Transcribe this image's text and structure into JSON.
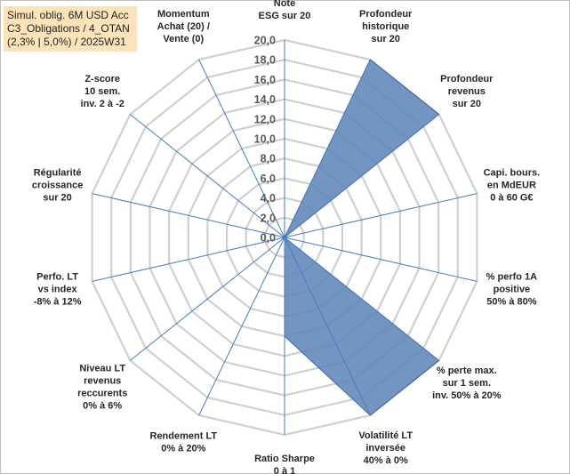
{
  "header": {
    "title_lines": [
      "Simul. oblig. 6M USD Acc",
      "C3_Obligations / 4_OTAN",
      "(2,3% | 5,0%) / 2025W31"
    ]
  },
  "chart_data": {
    "type": "radar",
    "rmin": 0,
    "rmax": 20,
    "tick_labels": [
      "0,0",
      "2,0",
      "4,0",
      "6,0",
      "8,0",
      "10,0",
      "12,0",
      "14,0",
      "16,0",
      "18,0",
      "20,0"
    ],
    "grid": true,
    "categories": [
      "Note ESG sur 20",
      "Profondeur historique sur 20",
      "Profondeur revenus sur 20",
      "Capi. bours. en MdEUR 0 à 60 G€",
      "% perfo 1A positive 50% à 80%",
      "% perte max. sur 1 sem. inv. 50% à 20%",
      "Volatilité LT inversée 40% à 0%",
      "Ratio Sharpe 0 à 1",
      "Rendement LT 0% à 20%",
      "Niveau LT revenus reccurents 0% à 6%",
      "Perfo. LT vs index -8% à 12%",
      "Régularité croissance sur 20",
      "Z-score 10 sem. inv. 2 à -2",
      "Momentum Achat (20) / Vente (0)"
    ],
    "category_lines": [
      [
        "Note",
        "ESG sur 20"
      ],
      [
        "Profondeur",
        "historique",
        "sur 20"
      ],
      [
        "Profondeur",
        "revenus",
        "sur 20"
      ],
      [
        "Capi. bours.",
        "en MdEUR",
        "0 à 60 G€"
      ],
      [
        "% perfo 1A",
        "positive",
        "50% à 80%"
      ],
      [
        "% perte max.",
        "sur 1 sem.",
        "inv. 50% à 20%"
      ],
      [
        "Volatilité LT",
        "inversée",
        "40% à 0%"
      ],
      [
        "Ratio Sharpe",
        "0 à 1"
      ],
      [
        "Rendement LT",
        "0% à 20%"
      ],
      [
        "Niveau LT",
        "revenus",
        "reccurents",
        "0% à 6%"
      ],
      [
        "Perfo. LT",
        "vs index",
        "-8% à 12%"
      ],
      [
        "Régularité",
        "croissance",
        "sur 20"
      ],
      [
        "Z-score",
        "10 sem.",
        "inv. 2 à -2"
      ],
      [
        "Momentum",
        "Achat (20) /",
        "Vente (0)"
      ]
    ],
    "series": [
      {
        "values": [
          0,
          20,
          20,
          0,
          0,
          20,
          20,
          10,
          0,
          0,
          0,
          0,
          0,
          0
        ]
      }
    ],
    "colors": {
      "fill": "#5e86b8",
      "stroke": "#3d66a3",
      "grid": "#d0d0d0",
      "spoke": "#4a7ebb"
    }
  }
}
